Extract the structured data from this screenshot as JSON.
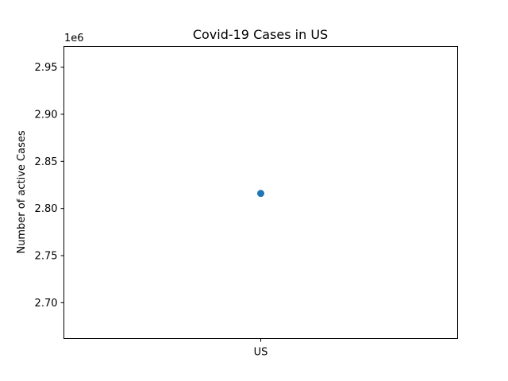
{
  "chart_data": {
    "type": "scatter",
    "title": "Covid-19 Cases in US",
    "xlabel": "",
    "ylabel": "Number of active Cases",
    "y_offset_label": "1e6",
    "categories": [
      "US"
    ],
    "values": [
      2816000
    ],
    "ylim": [
      2662000,
      2972000
    ],
    "yticks": [
      2700000,
      2750000,
      2800000,
      2850000,
      2900000,
      2950000
    ],
    "ytick_labels": [
      "2.70",
      "2.75",
      "2.80",
      "2.85",
      "2.90",
      "2.95"
    ],
    "grid": false,
    "marker_color": "#1f77b4"
  }
}
